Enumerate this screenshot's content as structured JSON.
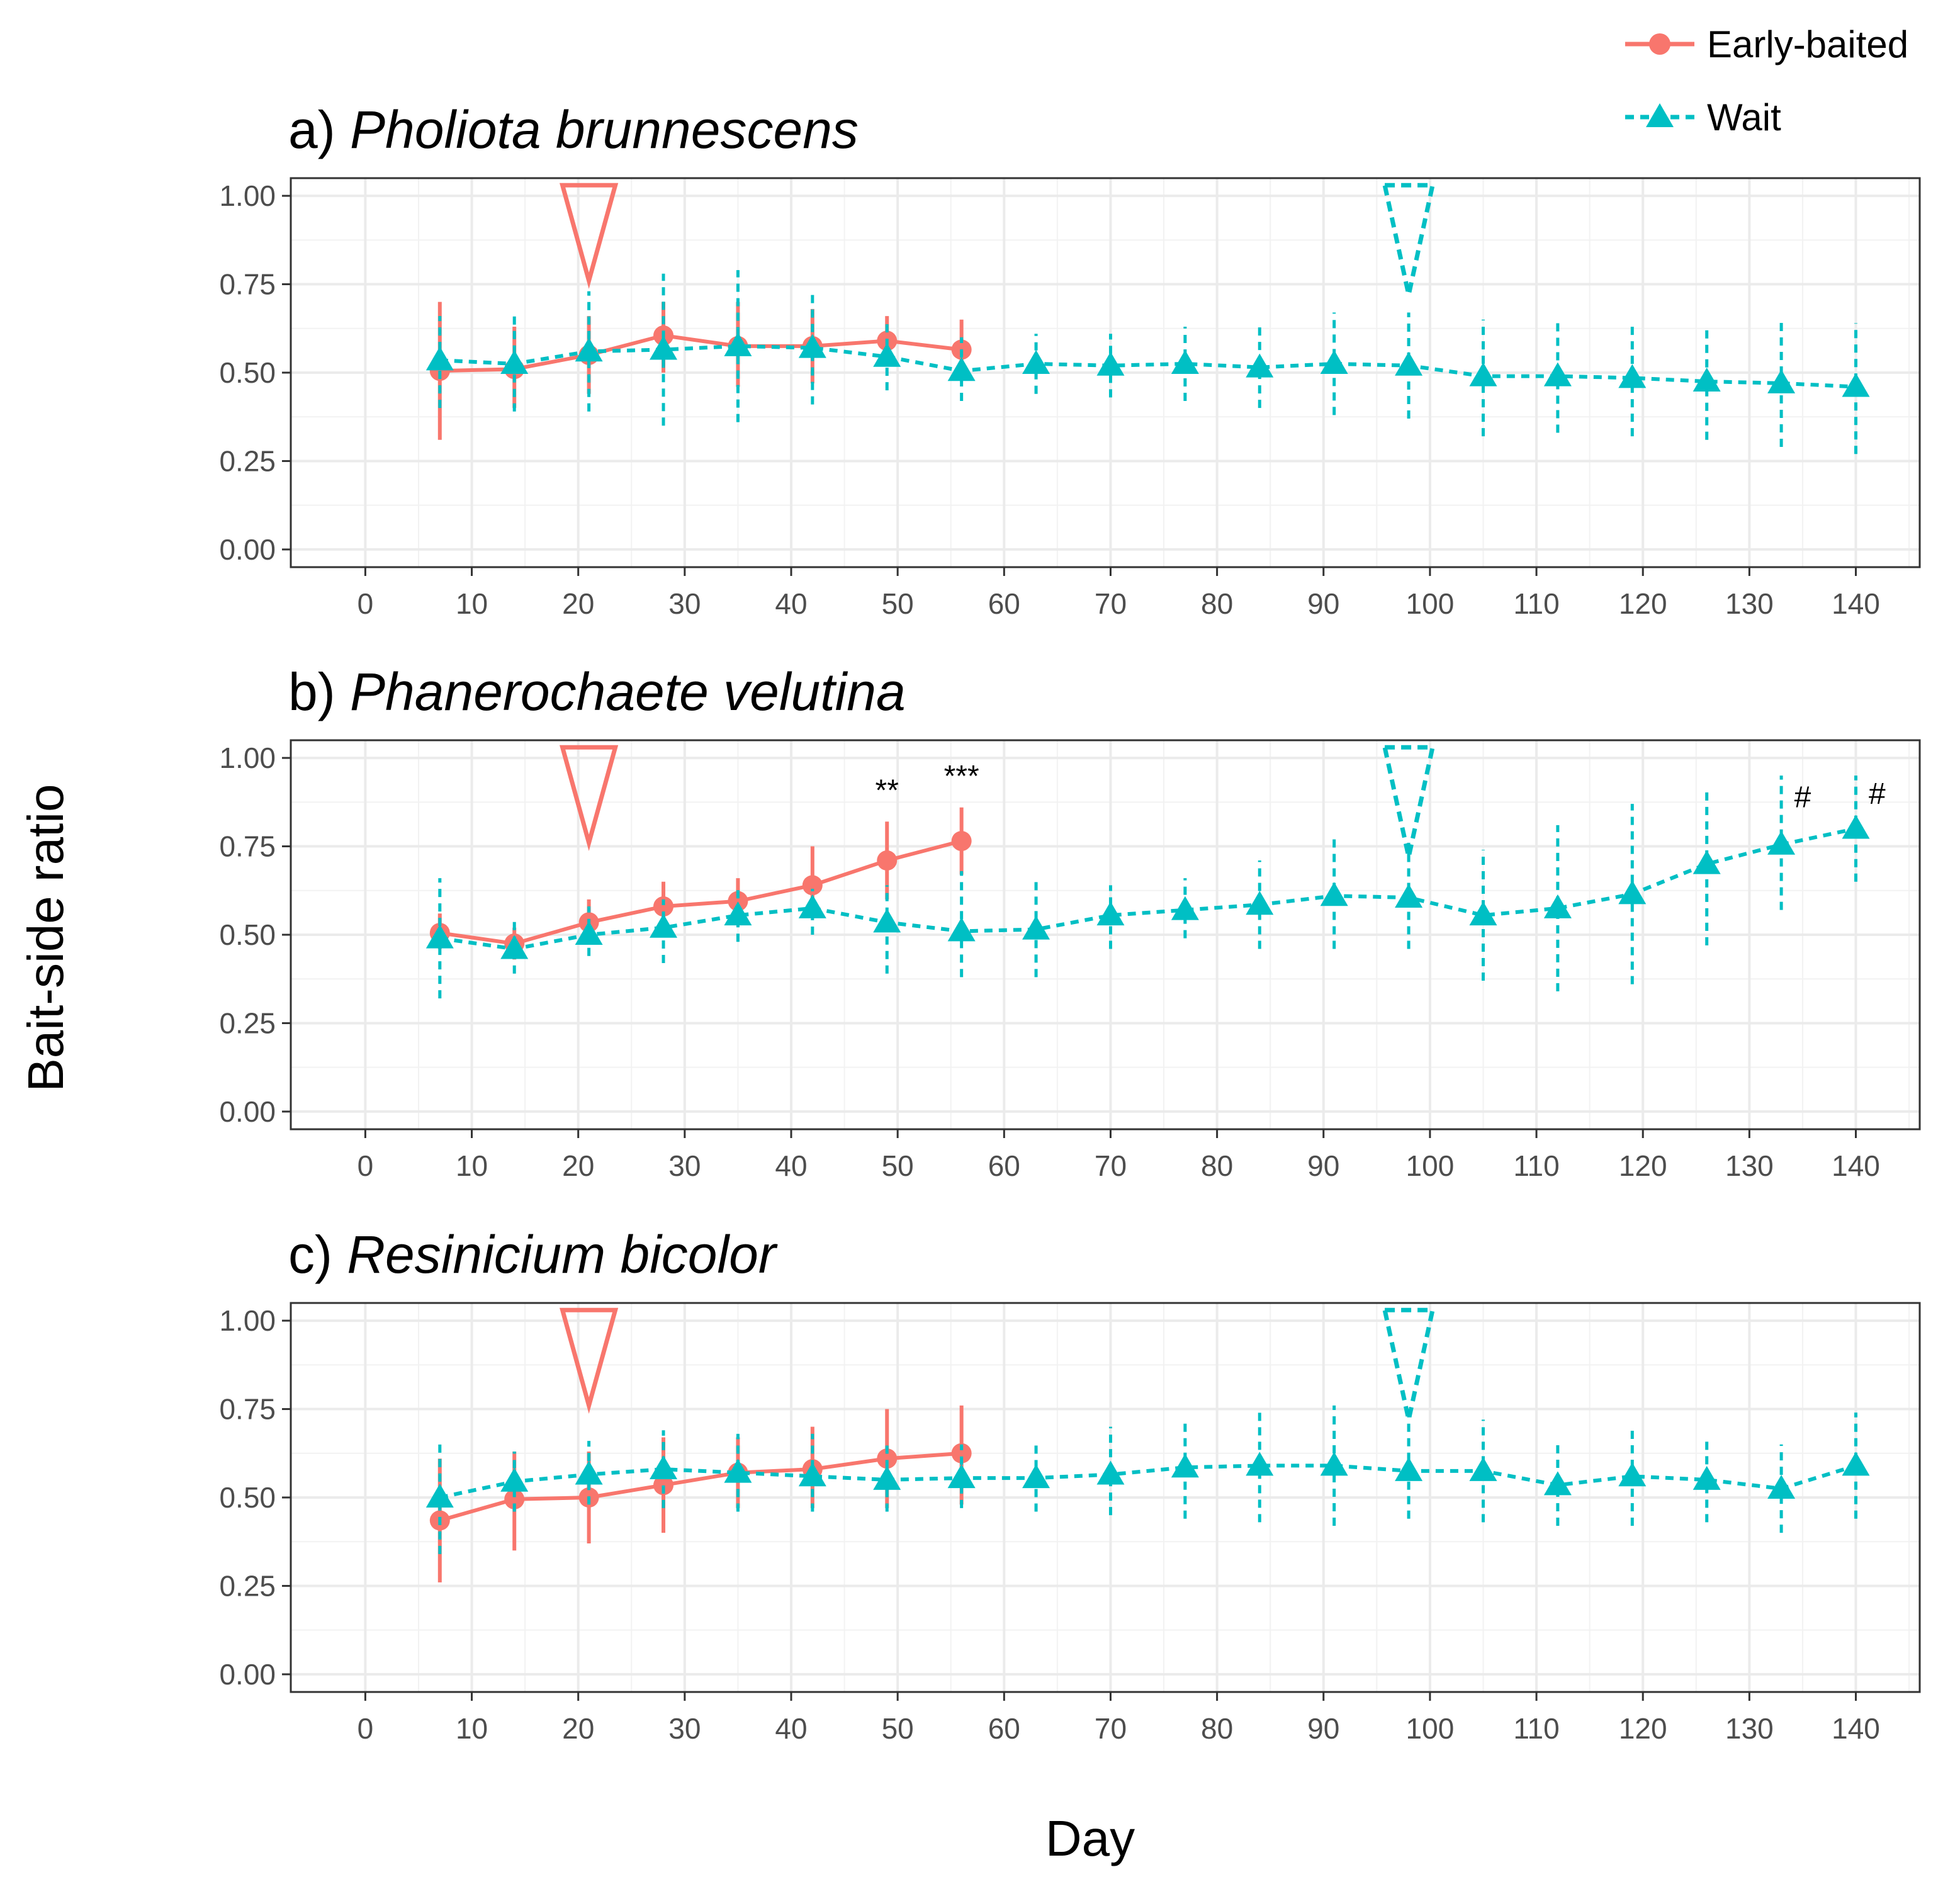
{
  "chart_data": {
    "type": "line",
    "ylabel": "Bait-side ratio",
    "xlabel": "Day",
    "xlim": [
      -7,
      146
    ],
    "ylim": [
      -0.05,
      1.05
    ],
    "x_ticks": [
      0,
      10,
      20,
      30,
      40,
      50,
      60,
      70,
      80,
      90,
      100,
      110,
      120,
      130,
      140
    ],
    "x_tick_labels": [
      "0",
      "10",
      "20",
      "30",
      "40",
      "50",
      "60",
      "70",
      "80",
      "90",
      "100",
      "110",
      "120",
      "130",
      "140"
    ],
    "y_ticks": [
      0,
      0.25,
      0.5,
      0.75,
      1.0
    ],
    "y_tick_labels": [
      "0.00",
      "0.25",
      "0.50",
      "0.75",
      "1.00"
    ],
    "grid": true,
    "legend": {
      "placement": "top-right",
      "entries": [
        {
          "name": "Early-baited",
          "color": "#F8766D",
          "marker": "circle",
          "line": "solid"
        },
        {
          "name": "Wait",
          "color": "#00BFC4",
          "marker": "triangle",
          "line": "dotted"
        }
      ]
    },
    "panels": [
      {
        "prefix": "a)",
        "species": "Pholiota brunnescens",
        "bait_markers": [
          {
            "series": "Early-baited",
            "day": 21,
            "style": "solid"
          },
          {
            "series": "Wait",
            "day": 98,
            "style": "dashed"
          }
        ],
        "series": [
          {
            "name": "Early-baited",
            "x": [
              7,
              14,
              21,
              28,
              35,
              42,
              49,
              56
            ],
            "y": [
              0.505,
              0.51,
              0.55,
              0.605,
              0.575,
              0.575,
              0.59,
              0.565
            ],
            "lo": [
              0.31,
              0.4,
              0.44,
              0.5,
              0.46,
              0.47,
              0.52,
              0.48
            ],
            "hi": [
              0.7,
              0.63,
              0.66,
              0.7,
              0.7,
              0.68,
              0.66,
              0.65
            ]
          },
          {
            "name": "Wait",
            "x": [
              7,
              14,
              21,
              28,
              35,
              42,
              49,
              56,
              63,
              70,
              77,
              84,
              91,
              98,
              105,
              112,
              119,
              126,
              133,
              140
            ],
            "y": [
              0.535,
              0.525,
              0.56,
              0.565,
              0.575,
              0.57,
              0.545,
              0.505,
              0.525,
              0.52,
              0.525,
              0.515,
              0.525,
              0.52,
              0.49,
              0.49,
              0.485,
              0.475,
              0.47,
              0.46
            ],
            "lo": [
              0.4,
              0.39,
              0.39,
              0.35,
              0.36,
              0.41,
              0.45,
              0.42,
              0.44,
              0.43,
              0.42,
              0.4,
              0.38,
              0.37,
              0.32,
              0.33,
              0.32,
              0.31,
              0.29,
              0.27
            ],
            "hi": [
              0.66,
              0.66,
              0.73,
              0.78,
              0.79,
              0.73,
              0.64,
              0.6,
              0.61,
              0.61,
              0.63,
              0.63,
              0.67,
              0.67,
              0.65,
              0.64,
              0.64,
              0.63,
              0.65,
              0.64
            ]
          }
        ],
        "annotations": []
      },
      {
        "prefix": "b)",
        "species": "Phanerochaete velutina",
        "bait_markers": [
          {
            "series": "Early-baited",
            "day": 21,
            "style": "solid"
          },
          {
            "series": "Wait",
            "day": 98,
            "style": "dashed"
          }
        ],
        "series": [
          {
            "name": "Early-baited",
            "x": [
              7,
              14,
              21,
              28,
              35,
              42,
              49,
              56
            ],
            "y": [
              0.505,
              0.475,
              0.535,
              0.58,
              0.595,
              0.64,
              0.71,
              0.765
            ],
            "lo": [
              0.46,
              0.43,
              0.48,
              0.52,
              0.54,
              0.56,
              0.6,
              0.67
            ],
            "hi": [
              0.56,
              0.52,
              0.6,
              0.65,
              0.66,
              0.75,
              0.82,
              0.86
            ]
          },
          {
            "name": "Wait",
            "x": [
              7,
              14,
              21,
              28,
              35,
              42,
              49,
              56,
              63,
              70,
              77,
              84,
              91,
              98,
              105,
              112,
              119,
              126,
              133,
              140
            ],
            "y": [
              0.49,
              0.46,
              0.5,
              0.52,
              0.555,
              0.575,
              0.535,
              0.51,
              0.515,
              0.555,
              0.57,
              0.585,
              0.61,
              0.605,
              0.555,
              0.575,
              0.615,
              0.7,
              0.755,
              0.8
            ],
            "lo": [
              0.32,
              0.39,
              0.44,
              0.42,
              0.48,
              0.5,
              0.39,
              0.38,
              0.38,
              0.46,
              0.49,
              0.46,
              0.46,
              0.46,
              0.37,
              0.34,
              0.36,
              0.47,
              0.57,
              0.65
            ],
            "hi": [
              0.66,
              0.54,
              0.58,
              0.6,
              0.63,
              0.63,
              0.64,
              0.68,
              0.65,
              0.64,
              0.66,
              0.71,
              0.77,
              0.76,
              0.74,
              0.81,
              0.87,
              0.92,
              0.95,
              0.95
            ]
          }
        ],
        "annotations": [
          {
            "day": 49,
            "y": 0.88,
            "text": "**"
          },
          {
            "day": 56,
            "y": 0.92,
            "text": "***"
          },
          {
            "day": 135,
            "y": 0.86,
            "text": "#"
          },
          {
            "day": 142,
            "y": 0.87,
            "text": "#"
          }
        ]
      },
      {
        "prefix": "c)",
        "species": "Resinicium bicolor",
        "bait_markers": [
          {
            "series": "Early-baited",
            "day": 21,
            "style": "solid"
          },
          {
            "series": "Wait",
            "day": 98,
            "style": "dashed"
          }
        ],
        "series": [
          {
            "name": "Early-baited",
            "x": [
              7,
              14,
              21,
              28,
              35,
              42,
              49,
              56
            ],
            "y": [
              0.435,
              0.495,
              0.5,
              0.535,
              0.57,
              0.58,
              0.61,
              0.625
            ],
            "lo": [
              0.26,
              0.35,
              0.37,
              0.4,
              0.47,
              0.47,
              0.47,
              0.48
            ],
            "hi": [
              0.61,
              0.63,
              0.63,
              0.67,
              0.67,
              0.7,
              0.75,
              0.76
            ]
          },
          {
            "name": "Wait",
            "x": [
              7,
              14,
              21,
              28,
              35,
              42,
              49,
              56,
              63,
              70,
              77,
              84,
              91,
              98,
              105,
              112,
              119,
              126,
              133,
              140
            ],
            "y": [
              0.5,
              0.545,
              0.565,
              0.58,
              0.57,
              0.56,
              0.55,
              0.555,
              0.555,
              0.565,
              0.585,
              0.59,
              0.59,
              0.575,
              0.575,
              0.535,
              0.56,
              0.55,
              0.525,
              0.59
            ],
            "lo": [
              0.34,
              0.46,
              0.48,
              0.47,
              0.46,
              0.46,
              0.46,
              0.47,
              0.46,
              0.45,
              0.44,
              0.43,
              0.42,
              0.44,
              0.43,
              0.42,
              0.42,
              0.43,
              0.4,
              0.44
            ],
            "hi": [
              0.66,
              0.63,
              0.66,
              0.69,
              0.68,
              0.68,
              0.66,
              0.65,
              0.66,
              0.7,
              0.72,
              0.75,
              0.76,
              0.73,
              0.72,
              0.66,
              0.7,
              0.67,
              0.65,
              0.74
            ]
          }
        ],
        "annotations": []
      }
    ]
  }
}
